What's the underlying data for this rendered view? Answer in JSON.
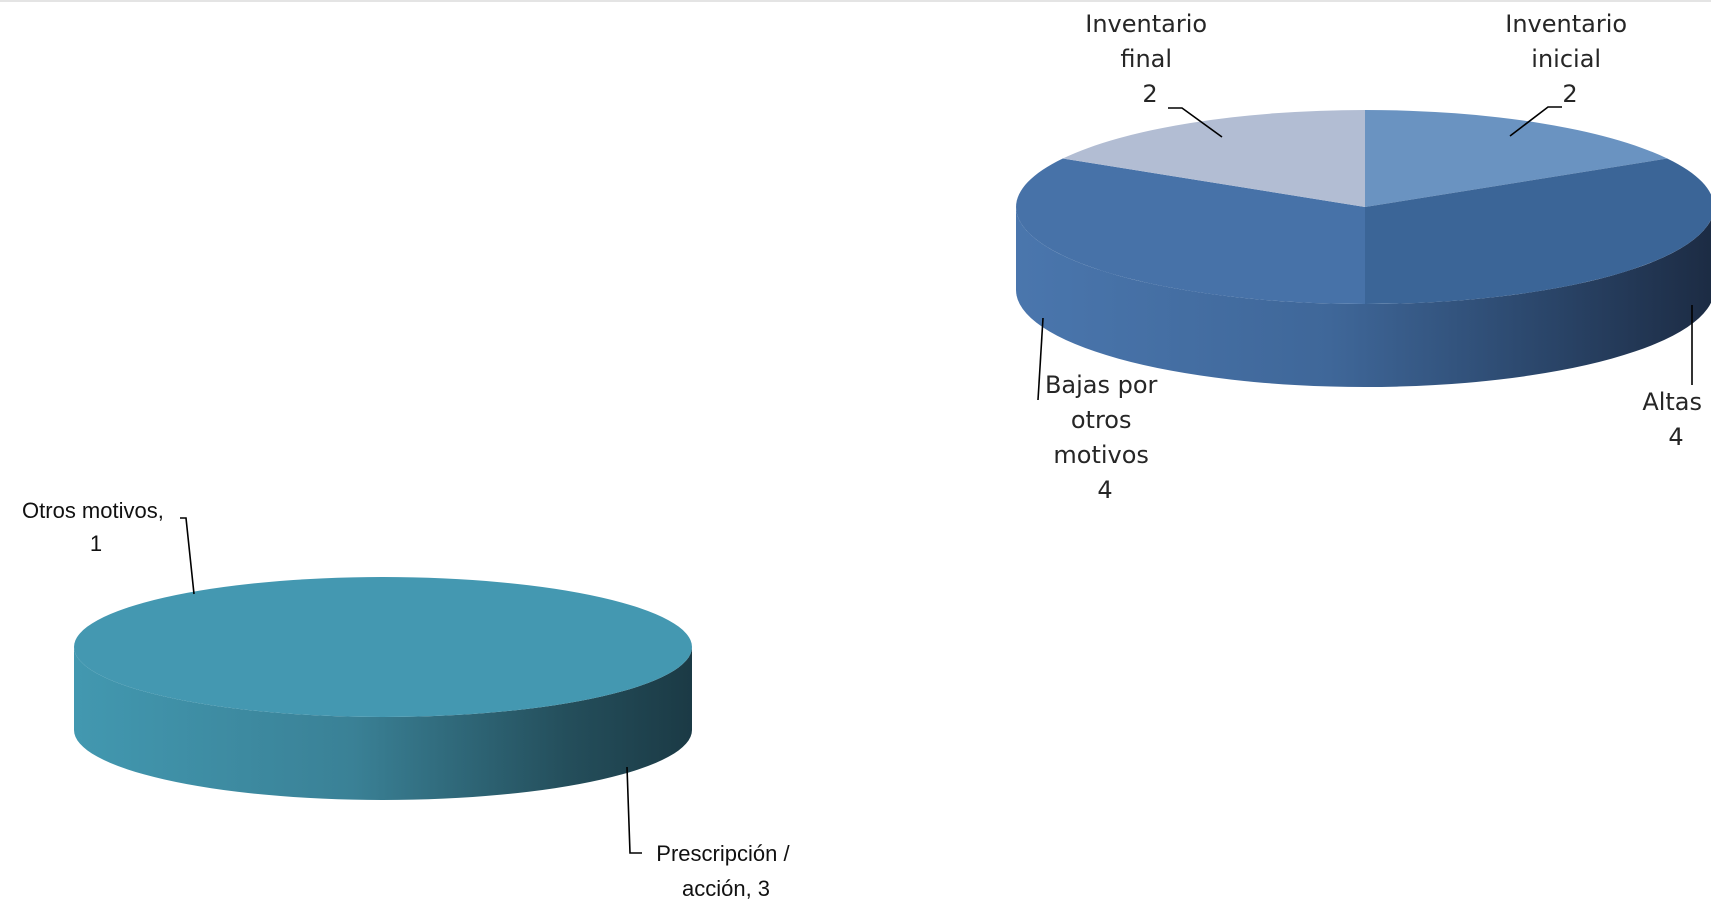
{
  "chart_data": [
    {
      "type": "pie",
      "style": "3d",
      "title": "",
      "categories": [
        "Inventario inicial",
        "Altas",
        "Bajas por otros motivos",
        "Inventario final"
      ],
      "values": [
        2,
        4,
        4,
        2
      ],
      "colors": [
        "#6a93c1",
        "#3b6597",
        "#4772a8",
        "#b2bdd3"
      ],
      "data_labels": [
        {
          "lines": [
            "Inventario",
            "inicial"
          ],
          "value": "2"
        },
        {
          "lines": [
            "Altas"
          ],
          "value": "4"
        },
        {
          "lines": [
            "Bajas por",
            "otros",
            "motivos"
          ],
          "value": "4"
        },
        {
          "lines": [
            "Inventario",
            "final"
          ],
          "value": "2"
        }
      ]
    },
    {
      "type": "pie",
      "style": "3d",
      "title": "",
      "categories": [
        "Prescripción / acción",
        "Otros motivos"
      ],
      "values": [
        3,
        1
      ],
      "colors": [
        "#4498b1",
        "#4498b1"
      ],
      "data_labels": [
        {
          "lines": [
            "Prescripción /",
            "acción, 3"
          ]
        },
        {
          "lines": [
            "Otros motivos,",
            "1"
          ]
        }
      ]
    }
  ]
}
